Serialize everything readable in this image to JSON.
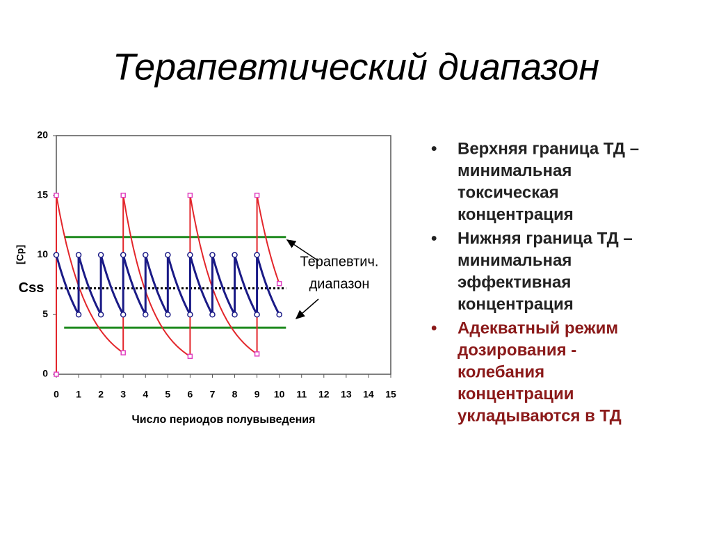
{
  "header": {
    "title": "Терапевтический диапазон"
  },
  "chart_data": {
    "type": "line",
    "xlabel": "Число периодов полувыведения",
    "ylabel": "[Cp]",
    "xlim": [
      0,
      15
    ],
    "xticks": [
      0,
      1,
      2,
      3,
      4,
      5,
      6,
      7,
      8,
      9,
      10,
      11,
      12,
      13,
      14,
      15
    ],
    "ylim": [
      0,
      20
    ],
    "yticks": [
      0,
      5,
      10,
      15,
      20
    ],
    "series": [
      {
        "color": "#e3262b",
        "marker_color": "#e040c0",
        "marker": "square",
        "x": [
          0,
          0,
          3,
          3,
          6,
          6,
          9,
          9,
          10
        ],
        "values": [
          0,
          15,
          1.8,
          15,
          1.5,
          15,
          1.7,
          15,
          7.6
        ]
      },
      {
        "color": "#1a1a86",
        "marker_color": "#1a1a86",
        "marker": "circle",
        "x": [
          0,
          1,
          1,
          2,
          2,
          3,
          3,
          4,
          4,
          5,
          5,
          6,
          6,
          7,
          7,
          8,
          8,
          9,
          9,
          10
        ],
        "values": [
          10,
          5,
          10,
          5,
          10,
          5,
          10,
          5,
          10,
          5,
          10,
          5,
          10,
          5,
          10,
          5,
          10,
          5,
          10,
          5
        ]
      }
    ],
    "range_lines": {
      "color": "#1e8a1e",
      "values": [
        11.5,
        3.9
      ],
      "x": [
        0.35,
        10.3
      ]
    },
    "css_line": {
      "label": "Css",
      "value": 7.2,
      "x": [
        0,
        10.3
      ]
    },
    "annotation": [
      "Терапевтич.",
      "диапазон"
    ]
  },
  "bullets": [
    {
      "color": "#222222",
      "lines": [
        "Верхняя граница ТД –",
        "минимальная",
        "токсическая",
        "концентрация"
      ]
    },
    {
      "color": "#222222",
      "lines": [
        "Нижняя граница ТД –",
        "минимальная",
        "эффективная",
        "концентрация"
      ]
    },
    {
      "color": "#8b1a1a",
      "lines": [
        "Адекватный режим",
        "дозирования -",
        "колебания",
        "концентрации",
        "укладываются  в  ТД"
      ]
    }
  ]
}
